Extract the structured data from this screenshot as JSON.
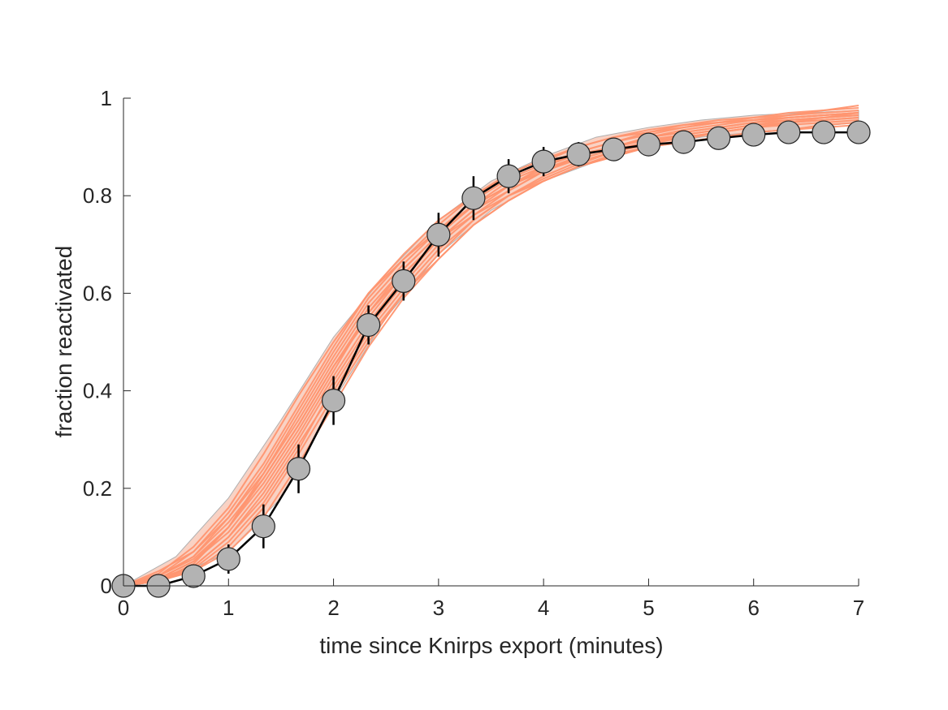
{
  "chart_data": {
    "type": "line",
    "title": "",
    "xlabel": "time since Knirps export (minutes)",
    "ylabel": "fraction reactivated",
    "xlim": [
      0,
      7
    ],
    "ylim": [
      0,
      1
    ],
    "xticks": [
      "0",
      "1",
      "2",
      "3",
      "4",
      "5",
      "6",
      "7"
    ],
    "yticks": [
      "0",
      "0.2",
      "0.4",
      "0.6",
      "0.8",
      "1"
    ],
    "grid": false,
    "legend": "none",
    "colors": {
      "data_marker": "#b3b3b3",
      "data_line": "#000000",
      "simulation_lines": "#ff9570",
      "simulation_band": "#f9d2c4"
    },
    "observed": {
      "x": [
        0,
        0.333,
        0.667,
        1.0,
        1.333,
        1.667,
        2.0,
        2.333,
        2.667,
        3.0,
        3.333,
        3.667,
        4.0,
        4.333,
        4.667,
        5.0,
        5.333,
        5.667,
        6.0,
        6.333,
        6.667,
        7.0
      ],
      "y": [
        0,
        0,
        0.02,
        0.055,
        0.122,
        0.24,
        0.38,
        0.535,
        0.625,
        0.72,
        0.795,
        0.84,
        0.87,
        0.885,
        0.895,
        0.905,
        0.91,
        0.918,
        0.925,
        0.93,
        0.93,
        0.93
      ],
      "err": [
        0,
        0,
        0.01,
        0.03,
        0.045,
        0.05,
        0.05,
        0.04,
        0.04,
        0.045,
        0.045,
        0.035,
        0.03,
        0.025,
        0.02,
        0.015,
        0.01,
        0.01,
        0.01,
        0.01,
        0.01,
        0.01
      ]
    },
    "band": {
      "x": [
        0,
        0.5,
        1.0,
        1.5,
        2.0,
        2.5,
        3.0,
        3.5,
        4.0,
        4.5,
        5.0,
        5.5,
        6.0,
        6.5,
        7.0
      ],
      "lower": [
        0,
        0.02,
        0.07,
        0.18,
        0.38,
        0.55,
        0.68,
        0.77,
        0.83,
        0.87,
        0.9,
        0.92,
        0.93,
        0.94,
        0.95
      ],
      "upper": [
        0,
        0.06,
        0.18,
        0.34,
        0.51,
        0.64,
        0.75,
        0.83,
        0.88,
        0.92,
        0.94,
        0.955,
        0.965,
        0.97,
        0.975
      ]
    },
    "simulations": [
      {
        "x": [
          0,
          0.333,
          0.667,
          1.0,
          1.333,
          1.667,
          2.0,
          2.333,
          2.667,
          3.0,
          3.333,
          3.667,
          4.0,
          4.333,
          4.667,
          5.0,
          5.333,
          5.667,
          6.0,
          6.333,
          6.667,
          7.0
        ],
        "y": [
          0,
          0.01,
          0.04,
          0.1,
          0.19,
          0.3,
          0.42,
          0.53,
          0.62,
          0.7,
          0.76,
          0.81,
          0.85,
          0.88,
          0.9,
          0.92,
          0.93,
          0.94,
          0.95,
          0.955,
          0.96,
          0.965
        ]
      },
      {
        "x": [
          0,
          0.333,
          0.667,
          1.0,
          1.333,
          1.667,
          2.0,
          2.333,
          2.667,
          3.0,
          3.333,
          3.667,
          4.0,
          4.333,
          4.667,
          5.0,
          5.333,
          5.667,
          6.0,
          6.333,
          6.667,
          7.0
        ],
        "y": [
          0,
          0.02,
          0.06,
          0.13,
          0.22,
          0.33,
          0.45,
          0.56,
          0.65,
          0.72,
          0.78,
          0.83,
          0.86,
          0.89,
          0.91,
          0.93,
          0.94,
          0.95,
          0.955,
          0.96,
          0.965,
          0.97
        ]
      },
      {
        "x": [
          0,
          0.333,
          0.667,
          1.0,
          1.333,
          1.667,
          2.0,
          2.333,
          2.667,
          3.0,
          3.333,
          3.667,
          4.0,
          4.333,
          4.667,
          5.0,
          5.333,
          5.667,
          6.0,
          6.333,
          6.667,
          7.0
        ],
        "y": [
          0,
          0.01,
          0.03,
          0.08,
          0.16,
          0.27,
          0.39,
          0.5,
          0.6,
          0.68,
          0.75,
          0.8,
          0.84,
          0.87,
          0.89,
          0.91,
          0.92,
          0.93,
          0.94,
          0.95,
          0.955,
          0.96
        ]
      },
      {
        "x": [
          0,
          0.333,
          0.667,
          1.0,
          1.333,
          1.667,
          2.0,
          2.333,
          2.667,
          3.0,
          3.333,
          3.667,
          4.0,
          4.333,
          4.667,
          5.0,
          5.333,
          5.667,
          6.0,
          6.333,
          6.667,
          7.0
        ],
        "y": [
          0,
          0.02,
          0.07,
          0.15,
          0.25,
          0.37,
          0.49,
          0.6,
          0.68,
          0.75,
          0.8,
          0.84,
          0.87,
          0.9,
          0.92,
          0.93,
          0.945,
          0.955,
          0.96,
          0.97,
          0.975,
          0.98
        ]
      },
      {
        "x": [
          0,
          0.333,
          0.667,
          1.0,
          1.333,
          1.667,
          2.0,
          2.333,
          2.667,
          3.0,
          3.333,
          3.667,
          4.0,
          4.333,
          4.667,
          5.0,
          5.333,
          5.667,
          6.0,
          6.333,
          6.667,
          7.0
        ],
        "y": [
          0,
          0.015,
          0.05,
          0.11,
          0.2,
          0.31,
          0.43,
          0.54,
          0.63,
          0.71,
          0.77,
          0.82,
          0.86,
          0.885,
          0.9,
          0.915,
          0.925,
          0.935,
          0.945,
          0.95,
          0.955,
          0.96
        ]
      },
      {
        "x": [
          0,
          0.333,
          0.667,
          1.0,
          1.333,
          1.667,
          2.0,
          2.333,
          2.667,
          3.0,
          3.333,
          3.667,
          4.0,
          4.333,
          4.667,
          5.0,
          5.333,
          5.667,
          6.0,
          6.333,
          6.667,
          7.0
        ],
        "y": [
          0,
          0.01,
          0.035,
          0.09,
          0.17,
          0.28,
          0.41,
          0.52,
          0.61,
          0.69,
          0.75,
          0.8,
          0.835,
          0.865,
          0.89,
          0.905,
          0.92,
          0.93,
          0.94,
          0.945,
          0.95,
          0.955
        ]
      },
      {
        "x": [
          0,
          0.333,
          0.667,
          1.0,
          1.333,
          1.667,
          2.0,
          2.333,
          2.667,
          3.0,
          3.333,
          3.667,
          4.0,
          4.333,
          4.667,
          5.0,
          5.333,
          5.667,
          6.0,
          6.333,
          6.667,
          7.0
        ],
        "y": [
          0,
          0.025,
          0.08,
          0.16,
          0.27,
          0.39,
          0.5,
          0.6,
          0.67,
          0.73,
          0.78,
          0.82,
          0.85,
          0.88,
          0.9,
          0.92,
          0.935,
          0.945,
          0.955,
          0.965,
          0.975,
          0.985
        ]
      },
      {
        "x": [
          0,
          0.333,
          0.667,
          1.0,
          1.333,
          1.667,
          2.0,
          2.333,
          2.667,
          3.0,
          3.333,
          3.667,
          4.0,
          4.333,
          4.667,
          5.0,
          5.333,
          5.667,
          6.0,
          6.333,
          6.667,
          7.0
        ],
        "y": [
          0,
          0.01,
          0.045,
          0.12,
          0.21,
          0.32,
          0.44,
          0.56,
          0.64,
          0.71,
          0.76,
          0.8,
          0.83,
          0.86,
          0.88,
          0.9,
          0.91,
          0.92,
          0.93,
          0.935,
          0.945,
          0.95
        ]
      },
      {
        "x": [
          0,
          0.333,
          0.667,
          1.0,
          1.333,
          1.667,
          2.0,
          2.333,
          2.667,
          3.0,
          3.333,
          3.667,
          4.0,
          4.333,
          4.667,
          5.0,
          5.333,
          5.667,
          6.0,
          6.333,
          6.667,
          7.0
        ],
        "y": [
          0,
          0.02,
          0.055,
          0.12,
          0.23,
          0.35,
          0.47,
          0.58,
          0.66,
          0.73,
          0.79,
          0.835,
          0.865,
          0.89,
          0.91,
          0.925,
          0.94,
          0.95,
          0.96,
          0.965,
          0.97,
          0.975
        ]
      },
      {
        "x": [
          0,
          0.333,
          0.667,
          1.0,
          1.333,
          1.667,
          2.0,
          2.333,
          2.667,
          3.0,
          3.333,
          3.667,
          4.0,
          4.333,
          4.667,
          5.0,
          5.333,
          5.667,
          6.0,
          6.333,
          6.667,
          7.0
        ],
        "y": [
          0,
          0.015,
          0.04,
          0.1,
          0.18,
          0.29,
          0.4,
          0.51,
          0.6,
          0.67,
          0.74,
          0.79,
          0.83,
          0.86,
          0.885,
          0.9,
          0.915,
          0.93,
          0.94,
          0.95,
          0.96,
          0.97
        ]
      },
      {
        "x": [
          0,
          0.333,
          0.667,
          1.0,
          1.333,
          1.667,
          2.0,
          2.333,
          2.667,
          3.0,
          3.333,
          3.667,
          4.0,
          4.333,
          4.667,
          5.0,
          5.333,
          5.667,
          6.0,
          6.333,
          6.667,
          7.0
        ],
        "y": [
          0,
          0.03,
          0.07,
          0.14,
          0.24,
          0.36,
          0.48,
          0.59,
          0.67,
          0.74,
          0.8,
          0.845,
          0.875,
          0.9,
          0.92,
          0.935,
          0.945,
          0.95,
          0.955,
          0.96,
          0.965,
          0.97
        ]
      },
      {
        "x": [
          0,
          0.333,
          0.667,
          1.0,
          1.333,
          1.667,
          2.0,
          2.333,
          2.667,
          3.0,
          3.333,
          3.667,
          4.0,
          4.333,
          4.667,
          5.0,
          5.333,
          5.667,
          6.0,
          6.333,
          6.667,
          7.0
        ],
        "y": [
          0,
          0.01,
          0.03,
          0.07,
          0.14,
          0.25,
          0.37,
          0.49,
          0.59,
          0.67,
          0.74,
          0.79,
          0.83,
          0.86,
          0.88,
          0.9,
          0.91,
          0.92,
          0.93,
          0.935,
          0.94,
          0.945
        ]
      },
      {
        "x": [
          0,
          0.333,
          0.667,
          1.0,
          1.333,
          1.667,
          2.0,
          2.333,
          2.667,
          3.0,
          3.333,
          3.667,
          4.0,
          4.333,
          4.667,
          5.0,
          5.333,
          5.667,
          6.0,
          6.333,
          6.667,
          7.0
        ],
        "y": [
          0,
          0.02,
          0.06,
          0.14,
          0.23,
          0.34,
          0.46,
          0.57,
          0.65,
          0.72,
          0.78,
          0.82,
          0.855,
          0.88,
          0.9,
          0.92,
          0.93,
          0.94,
          0.95,
          0.96,
          0.965,
          0.97
        ]
      },
      {
        "x": [
          0,
          0.333,
          0.667,
          1.0,
          1.333,
          1.667,
          2.0,
          2.333,
          2.667,
          3.0,
          3.333,
          3.667,
          4.0,
          4.333,
          4.667,
          5.0,
          5.333,
          5.667,
          6.0,
          6.333,
          6.667,
          7.0
        ],
        "y": [
          0,
          0.015,
          0.05,
          0.12,
          0.22,
          0.33,
          0.45,
          0.55,
          0.64,
          0.71,
          0.77,
          0.81,
          0.85,
          0.875,
          0.895,
          0.91,
          0.925,
          0.935,
          0.945,
          0.955,
          0.96,
          0.965
        ]
      }
    ]
  }
}
